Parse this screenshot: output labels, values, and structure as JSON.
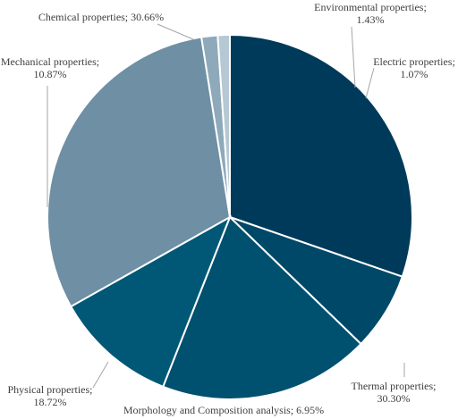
{
  "chart_data": {
    "type": "pie",
    "start_angle_deg": 0,
    "direction": "clockwise",
    "slices": [
      {
        "name": "Thermal properties",
        "value": 30.3,
        "value_label": "30.30%",
        "color": "#003a5a"
      },
      {
        "name": "Morphology and Composition analysis",
        "value": 6.95,
        "value_label": "6.95%",
        "color": "#004868"
      },
      {
        "name": "Physical properties",
        "value": 18.72,
        "value_label": "18.72%",
        "color": "#00506f"
      },
      {
        "name": "Mechanical properties",
        "value": 10.87,
        "value_label": "10.87%",
        "color": "#005876"
      },
      {
        "name": "Chemical properties",
        "value": 30.66,
        "value_label": "30.66%",
        "color": "#6e8fa4"
      },
      {
        "name": "Environmental properties",
        "value": 1.43,
        "value_label": "1.43%",
        "color": "#8ea9ba"
      },
      {
        "name": "Electric properties",
        "value": 1.07,
        "value_label": "1.07%",
        "color": "#b5c8d3"
      }
    ]
  }
}
